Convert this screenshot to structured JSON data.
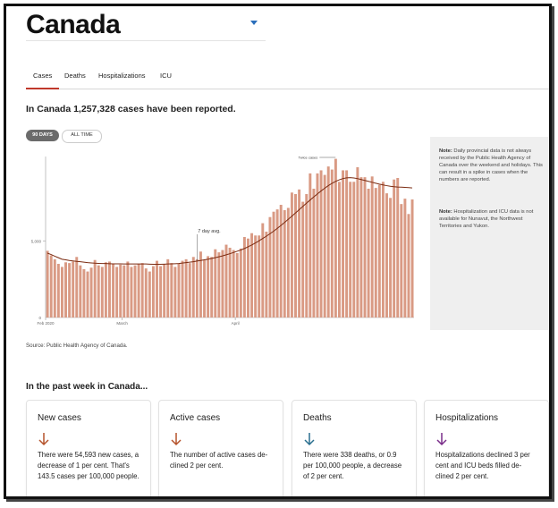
{
  "header": {
    "country": "Canada"
  },
  "tabs": [
    {
      "label": "Cases",
      "active": true
    },
    {
      "label": "Deaths",
      "active": false
    },
    {
      "label": "Hospitalizations",
      "active": false
    },
    {
      "label": "ICU",
      "active": false
    }
  ],
  "summary": "In Canada 1,257,328 cases have been reported.",
  "range_toggle": {
    "active": "90 DAYS",
    "inactive": "ALL TIME"
  },
  "chart_data": {
    "type": "bar",
    "series_name": "Daily new cases",
    "avg_label": "7 day avg.",
    "peak_label": "Twice cases",
    "y_ticks": [
      {
        "label": "0",
        "value": 0
      },
      {
        "label": "5,000",
        "value": 5000
      }
    ],
    "x_ticks": [
      {
        "label": "Feb 2020",
        "index": 0
      },
      {
        "label": "March",
        "index": 21
      },
      {
        "label": "April",
        "index": 52
      }
    ],
    "ylim": [
      0,
      10500
    ],
    "bar_color": "#d99a84",
    "avg_color": "#7a2a10",
    "values": [
      4350,
      4050,
      3800,
      3500,
      3300,
      3600,
      3550,
      3650,
      3950,
      3400,
      3150,
      3000,
      3250,
      3750,
      3400,
      3300,
      3600,
      3650,
      3500,
      3300,
      3450,
      3400,
      3650,
      3300,
      3400,
      3500,
      3550,
      3200,
      3000,
      3350,
      3700,
      3350,
      3500,
      3800,
      3550,
      3300,
      3500,
      3700,
      3800,
      3550,
      3950,
      3800,
      4300,
      3750,
      4000,
      3950,
      4450,
      4250,
      4400,
      4750,
      4550,
      4400,
      4200,
      4500,
      5250,
      5150,
      5500,
      5350,
      5350,
      6150,
      5600,
      6550,
      6900,
      7050,
      7350,
      7000,
      7150,
      8150,
      8050,
      8350,
      7550,
      8050,
      9400,
      8400,
      9400,
      9600,
      9300,
      9850,
      9650,
      10350,
      8850,
      9600,
      9600,
      8850,
      8850,
      9800,
      9150,
      9150,
      8400,
      9200,
      8450,
      8650,
      8850,
      8100,
      7800,
      9000,
      9100,
      7400,
      7750,
      6750,
      7700
    ],
    "avg": [
      4200,
      4110,
      4000,
      3900,
      3800,
      3760,
      3720,
      3690,
      3660,
      3640,
      3610,
      3580,
      3560,
      3540,
      3530,
      3520,
      3520,
      3510,
      3500,
      3500,
      3500,
      3490,
      3490,
      3490,
      3490,
      3490,
      3490,
      3490,
      3480,
      3470,
      3470,
      3470,
      3480,
      3490,
      3500,
      3510,
      3520,
      3550,
      3580,
      3610,
      3640,
      3680,
      3720,
      3760,
      3800,
      3850,
      3900,
      3960,
      4020,
      4090,
      4160,
      4240,
      4320,
      4400,
      4500,
      4610,
      4730,
      4860,
      5000,
      5150,
      5300,
      5460,
      5630,
      5810,
      6000,
      6200,
      6400,
      6610,
      6820,
      7030,
      7240,
      7450,
      7660,
      7860,
      8060,
      8250,
      8430,
      8600,
      8750,
      8880,
      8980,
      9060,
      9110,
      9120,
      9100,
      9060,
      9000,
      8940,
      8880,
      8820,
      8760,
      8700,
      8650,
      8600,
      8560,
      8530,
      8510,
      8500,
      8490,
      8470,
      8450
    ]
  },
  "notes": [
    {
      "bold": "Note:",
      "text": " Daily provincial data is not always received by the Public Health Agency of Canada over the weekend and holidays. This can result in a spike in cases when the numbers are reported."
    },
    {
      "bold": "Note:",
      "text": " Hospitalization and ICU data is not available for Nunavut, the Northwest Territories and Yukon."
    }
  ],
  "source": "Source: Public Health Agency of Canada.",
  "past_week_heading": "In the past week in Canada...",
  "cards": [
    {
      "title": "New cases",
      "arrow": "arrow-down-icon",
      "arrow_color": "#b5532c",
      "lines": [
        "There were 54,593 new cases, a",
        "decrease of 1 per cent. That's",
        "143.5 cases per 100,000 people."
      ]
    },
    {
      "title": "Active cases",
      "arrow": "arrow-down-icon",
      "arrow_color": "#b5532c",
      "lines": [
        "The number of active cases de-",
        "clined 2 per cent."
      ]
    },
    {
      "title": "Deaths",
      "arrow": "arrow-down-icon",
      "arrow_color": "#2a6f8f",
      "lines": [
        "There were 338 deaths, or 0.9",
        "per 100,000 people, a decrease",
        "of 2 per cent."
      ]
    },
    {
      "title": "Hospitalizations",
      "arrow": "arrow-down-icon",
      "arrow_color": "#7a2e8a",
      "lines": [
        "Hospitalizations declined 3 per",
        "cent and ICU beds filled de-",
        "clined 2 per cent."
      ]
    }
  ]
}
